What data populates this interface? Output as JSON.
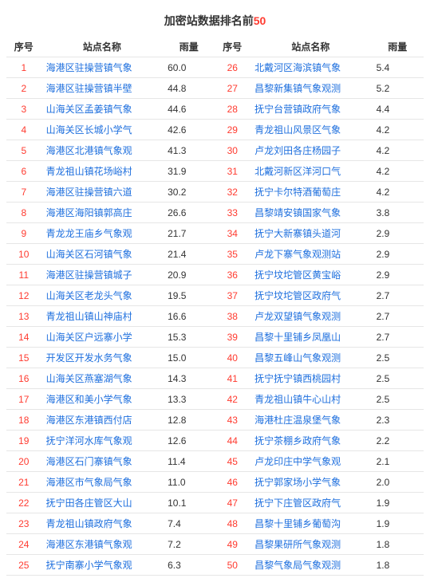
{
  "title_prefix": "加密站数据排名前",
  "title_num": "50",
  "headers": {
    "seq": "序号",
    "name": "站点名称",
    "rain": "雨量"
  },
  "colors": {
    "seq": "#ff3b30",
    "name": "#1e6fde",
    "rain": "#333333",
    "border": "#e6e6e6",
    "title_highlight": "#ff3b30"
  },
  "rows_left": [
    {
      "seq": "1",
      "name": "海港区驻操营镇气象",
      "rain": "60.0"
    },
    {
      "seq": "2",
      "name": "海港区驻操营镇半壁",
      "rain": "44.8"
    },
    {
      "seq": "3",
      "name": "山海关区孟姜镇气象",
      "rain": "44.6"
    },
    {
      "seq": "4",
      "name": "山海关区长城小学气",
      "rain": "42.6"
    },
    {
      "seq": "5",
      "name": "海港区北港镇气象观",
      "rain": "41.3"
    },
    {
      "seq": "6",
      "name": "青龙祖山镇花场峪村",
      "rain": "31.9"
    },
    {
      "seq": "7",
      "name": "海港区驻操营镇六道",
      "rain": "30.2"
    },
    {
      "seq": "8",
      "name": "海港区海阳镇郭高庄",
      "rain": "26.6"
    },
    {
      "seq": "9",
      "name": "青龙龙王庙乡气象观",
      "rain": "21.7"
    },
    {
      "seq": "10",
      "name": "山海关区石河镇气象",
      "rain": "21.4"
    },
    {
      "seq": "11",
      "name": "海港区驻操营镇城子",
      "rain": "20.9"
    },
    {
      "seq": "12",
      "name": "山海关区老龙头气象",
      "rain": "19.5"
    },
    {
      "seq": "13",
      "name": "青龙祖山镇山神庙村",
      "rain": "16.6"
    },
    {
      "seq": "14",
      "name": "山海关区户远寨小学",
      "rain": "15.3"
    },
    {
      "seq": "15",
      "name": "开发区开发水务气象",
      "rain": "15.0"
    },
    {
      "seq": "16",
      "name": "山海关区燕塞湖气象",
      "rain": "14.3"
    },
    {
      "seq": "17",
      "name": "海港区和美小学气象",
      "rain": "13.3"
    },
    {
      "seq": "18",
      "name": "海港区东港镇西付店",
      "rain": "12.8"
    },
    {
      "seq": "19",
      "name": "抚宁洋河水库气象观",
      "rain": "12.6"
    },
    {
      "seq": "20",
      "name": "海港区石门寨镇气象",
      "rain": "11.4"
    },
    {
      "seq": "21",
      "name": "海港区市气象局气象",
      "rain": "11.0"
    },
    {
      "seq": "22",
      "name": "抚宁田各庄管区大山",
      "rain": "10.1"
    },
    {
      "seq": "23",
      "name": "青龙祖山镇政府气象",
      "rain": "7.4"
    },
    {
      "seq": "24",
      "name": "海港区东港镇气象观",
      "rain": "7.2"
    },
    {
      "seq": "25",
      "name": "抚宁南寨小学气象观",
      "rain": "6.3"
    }
  ],
  "rows_right": [
    {
      "seq": "26",
      "name": "北戴河区海滨镇气象",
      "rain": "5.4"
    },
    {
      "seq": "27",
      "name": "昌黎新集镇气象观测",
      "rain": "5.2"
    },
    {
      "seq": "28",
      "name": "抚宁台营镇政府气象",
      "rain": "4.4"
    },
    {
      "seq": "29",
      "name": "青龙祖山风景区气象",
      "rain": "4.2"
    },
    {
      "seq": "30",
      "name": "卢龙刘田各庄杨园子",
      "rain": "4.2"
    },
    {
      "seq": "31",
      "name": "北戴河新区洋河口气",
      "rain": "4.2"
    },
    {
      "seq": "32",
      "name": "抚宁卡尔特酒葡萄庄",
      "rain": "4.2"
    },
    {
      "seq": "33",
      "name": "昌黎靖安镇国家气象",
      "rain": "3.8"
    },
    {
      "seq": "34",
      "name": "抚宁大新寨镇头道河",
      "rain": "2.9"
    },
    {
      "seq": "35",
      "name": "卢龙下寨气象观测站",
      "rain": "2.9"
    },
    {
      "seq": "36",
      "name": "抚宁坟坨管区黄宝峪",
      "rain": "2.9"
    },
    {
      "seq": "37",
      "name": "抚宁坟坨管区政府气",
      "rain": "2.7"
    },
    {
      "seq": "38",
      "name": "卢龙双望镇气象观测",
      "rain": "2.7"
    },
    {
      "seq": "39",
      "name": "昌黎十里铺乡凤凰山",
      "rain": "2.7"
    },
    {
      "seq": "40",
      "name": "昌黎五峰山气象观测",
      "rain": "2.5"
    },
    {
      "seq": "41",
      "name": "抚宁抚宁镇西桃园村",
      "rain": "2.5"
    },
    {
      "seq": "42",
      "name": "青龙祖山镇牛心山村",
      "rain": "2.5"
    },
    {
      "seq": "43",
      "name": "海港杜庄温泉堡气象",
      "rain": "2.3"
    },
    {
      "seq": "44",
      "name": "抚宁茶棚乡政府气象",
      "rain": "2.2"
    },
    {
      "seq": "45",
      "name": "卢龙印庄中学气象观",
      "rain": "2.1"
    },
    {
      "seq": "46",
      "name": "抚宁郭家场小学气象",
      "rain": "2.0"
    },
    {
      "seq": "47",
      "name": "抚宁下庄管区政府气",
      "rain": "1.9"
    },
    {
      "seq": "48",
      "name": "昌黎十里铺乡葡萄沟",
      "rain": "1.9"
    },
    {
      "seq": "49",
      "name": "昌黎果研所气象观测",
      "rain": "1.8"
    },
    {
      "seq": "50",
      "name": "昌黎气象局气象观测",
      "rain": "1.8"
    }
  ]
}
